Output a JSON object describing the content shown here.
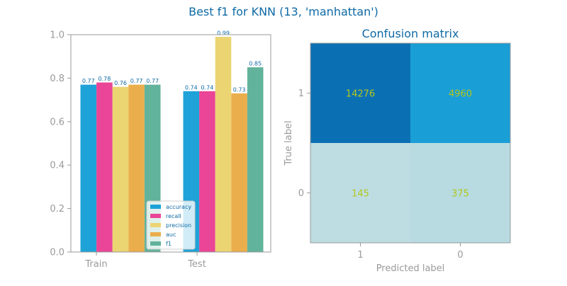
{
  "figure": {
    "suptitle": "Best f1 for KNN (13, 'manhattan')"
  },
  "chart_data": [
    {
      "type": "bar",
      "categories": [
        "Train",
        "Test"
      ],
      "series": [
        {
          "name": "accuracy",
          "values": [
            0.77,
            0.74
          ],
          "labels": [
            "0.77",
            "0.74"
          ],
          "color": "#1ea2d8"
        },
        {
          "name": "recall",
          "values": [
            0.78,
            0.74
          ],
          "labels": [
            "0.78",
            "0.74"
          ],
          "color": "#ea4596"
        },
        {
          "name": "precision",
          "values": [
            0.76,
            0.99
          ],
          "labels": [
            "0.76",
            "0.99"
          ],
          "color": "#ebd472"
        },
        {
          "name": "auc",
          "values": [
            0.77,
            0.73
          ],
          "labels": [
            "0.77",
            "0.73"
          ],
          "color": "#ebae4c"
        },
        {
          "name": "f1",
          "values": [
            0.77,
            0.85
          ],
          "labels": [
            "0.77",
            "0.85"
          ],
          "color": "#62b39b"
        }
      ],
      "ylim": [
        0,
        1
      ],
      "yticks": [
        "0.0",
        "0.2",
        "0.4",
        "0.6",
        "0.8",
        "1.0"
      ],
      "legend_position": "lower-right",
      "grid": false
    },
    {
      "type": "heatmap",
      "title": "Confusion matrix",
      "xlabel": "Predicted label",
      "ylabel": "True label",
      "x_ticks": [
        "1",
        "0"
      ],
      "y_ticks": [
        "1",
        "0"
      ],
      "cells": [
        {
          "row": 0,
          "col": 0,
          "value": "14276",
          "color": "#0b70b3"
        },
        {
          "row": 0,
          "col": 1,
          "value": "4960",
          "color": "#1a9ed6"
        },
        {
          "row": 1,
          "col": 0,
          "value": "145",
          "color": "#bedde2"
        },
        {
          "row": 1,
          "col": 1,
          "value": "375",
          "color": "#b7dbe0"
        }
      ],
      "value_color": "#b2c71c"
    }
  ],
  "colors": {
    "title": "#0e6aa5",
    "axis": "#9a9a9a",
    "bar_label": "#0e6aa5"
  }
}
